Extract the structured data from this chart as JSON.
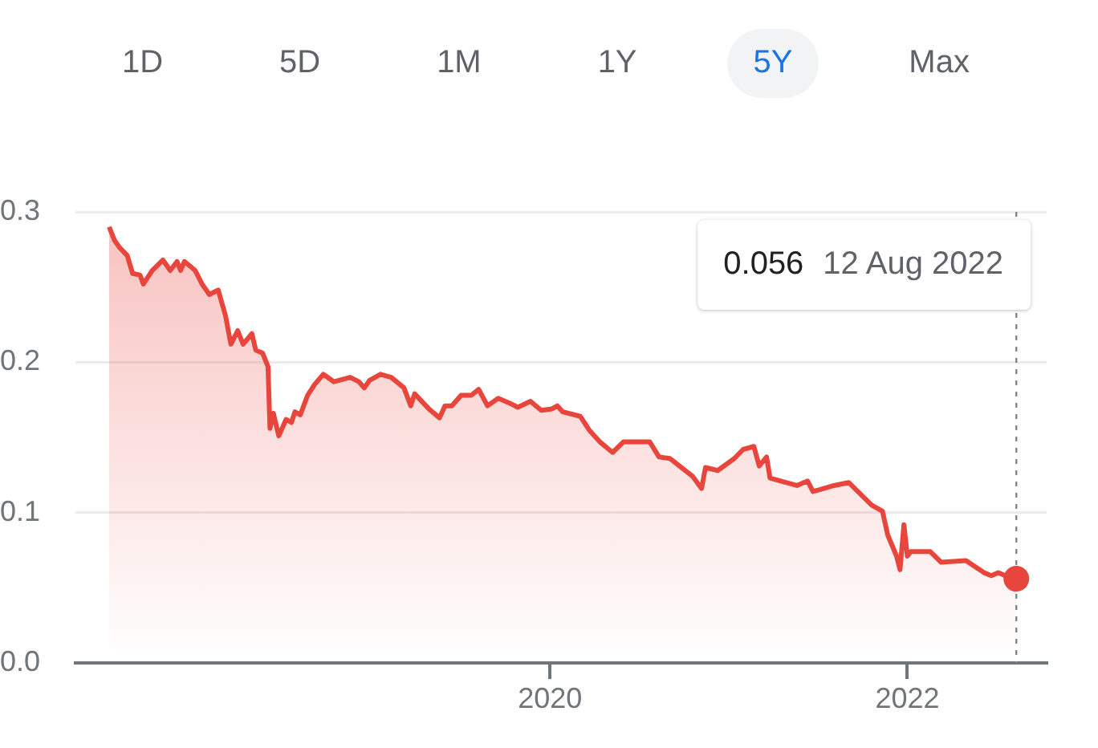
{
  "chart_data": {
    "type": "area",
    "annotations": [
      "1D",
      "5D",
      "1M",
      "1Y",
      "5Y",
      "Max",
      "0.056",
      "12 Aug 2022"
    ],
    "x": [
      "2017-07-13",
      "2017-07-24",
      "2017-08-04",
      "2017-08-19",
      "2017-08-30",
      "2017-09-14",
      "2017-09-21",
      "2017-10-09",
      "2017-10-31",
      "2017-11-15",
      "2017-11-29",
      "2017-12-06",
      "2017-12-14",
      "2018-01-05",
      "2018-01-19",
      "2018-02-03",
      "2018-02-21",
      "2018-03-08",
      "2018-03-19",
      "2018-04-02",
      "2018-04-13",
      "2018-05-01",
      "2018-05-09",
      "2018-05-23",
      "2018-06-03",
      "2018-06-07",
      "2018-06-14",
      "2018-06-25",
      "2018-07-10",
      "2018-07-21",
      "2018-07-28",
      "2018-08-08",
      "2018-08-23",
      "2018-09-06",
      "2018-09-24",
      "2018-10-16",
      "2018-11-18",
      "2018-12-06",
      "2018-12-17",
      "2018-12-28",
      "2019-01-19",
      "2019-02-10",
      "2019-03-08",
      "2019-03-22",
      "2019-03-30",
      "2019-04-28",
      "2019-05-20",
      "2019-05-31",
      "2019-06-14",
      "2019-07-03",
      "2019-07-24",
      "2019-08-08",
      "2019-08-26",
      "2019-09-17",
      "2019-10-09",
      "2019-10-27",
      "2019-11-22",
      "2019-12-14",
      "2020-01-05",
      "2020-01-16",
      "2020-01-27",
      "2020-03-03",
      "2020-03-21",
      "2020-04-01",
      "2020-04-12",
      "2020-05-08",
      "2020-05-30",
      "2020-07-23",
      "2020-08-11",
      "2020-09-02",
      "2020-10-19",
      "2020-11-06",
      "2020-11-14",
      "2020-12-09",
      "2021-01-12",
      "2021-01-30",
      "2021-02-21",
      "2021-03-04",
      "2021-03-19",
      "2021-03-26",
      "2021-04-17",
      "2021-05-20",
      "2021-06-11",
      "2021-06-22",
      "2021-08-04",
      "2021-09-03",
      "2021-09-28",
      "2021-10-20",
      "2021-11-11",
      "2021-11-22",
      "2021-12-10",
      "2021-12-17",
      "2021-12-25",
      "2022-01-01",
      "2022-01-08",
      "2022-02-17",
      "2022-03-11",
      "2022-05-01",
      "2022-06-07",
      "2022-06-22",
      "2022-07-06",
      "2022-07-28",
      "2022-08-12"
    ],
    "series": [
      {
        "color": "#e8453c",
        "values": [
          0.29,
          0.281,
          0.276,
          0.271,
          0.259,
          0.258,
          0.252,
          0.261,
          0.268,
          0.261,
          0.267,
          0.261,
          0.267,
          0.261,
          0.252,
          0.245,
          0.248,
          0.231,
          0.212,
          0.221,
          0.212,
          0.219,
          0.208,
          0.206,
          0.197,
          0.156,
          0.166,
          0.151,
          0.162,
          0.16,
          0.167,
          0.165,
          0.178,
          0.185,
          0.192,
          0.187,
          0.19,
          0.187,
          0.183,
          0.188,
          0.192,
          0.19,
          0.183,
          0.171,
          0.179,
          0.169,
          0.163,
          0.171,
          0.171,
          0.178,
          0.178,
          0.182,
          0.171,
          0.176,
          0.173,
          0.17,
          0.174,
          0.168,
          0.169,
          0.171,
          0.167,
          0.164,
          0.155,
          0.151,
          0.147,
          0.14,
          0.147,
          0.147,
          0.137,
          0.136,
          0.124,
          0.116,
          0.13,
          0.128,
          0.136,
          0.142,
          0.144,
          0.131,
          0.137,
          0.123,
          0.121,
          0.118,
          0.121,
          0.114,
          0.118,
          0.12,
          0.112,
          0.105,
          0.101,
          0.085,
          0.071,
          0.062,
          0.092,
          0.071,
          0.074,
          0.074,
          0.067,
          0.068,
          0.06,
          0.058,
          0.06,
          0.057,
          0.056
        ]
      }
    ],
    "xlim": [
      "2017-05-05",
      "2022-10-13"
    ],
    "xticks": [
      "2020",
      "2022"
    ],
    "ylim": [
      0,
      0.3
    ],
    "yticks": [
      {
        "value": 0,
        "label": "0.0"
      },
      0.1,
      0.2,
      0.3
    ],
    "ref_lines": [
      {
        "axis": "x",
        "value": "2022-08-12",
        "color": "#80868b",
        "line_style": "dashed"
      }
    ],
    "grid": "y",
    "legend": false,
    "marker": "none",
    "line_style": "solid"
  }
}
